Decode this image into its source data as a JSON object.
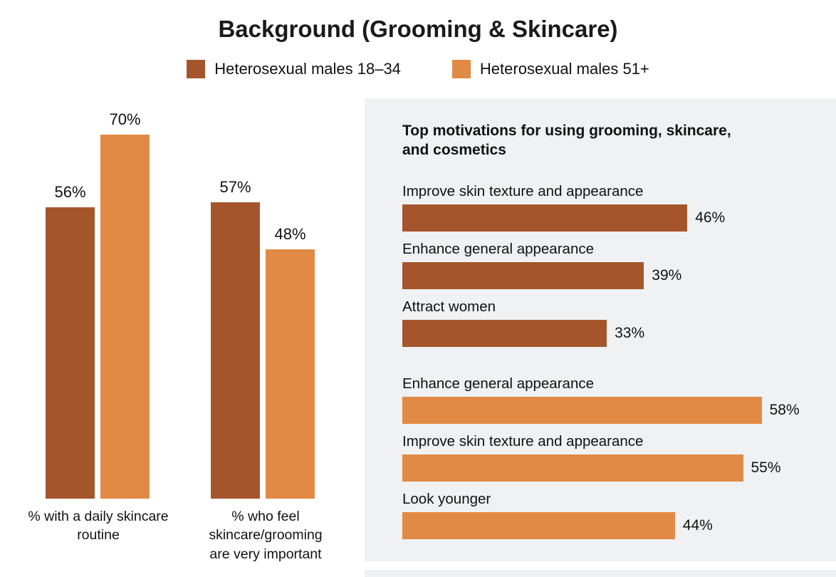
{
  "page": {
    "title": "Background (Grooming & Skincare)"
  },
  "colors": {
    "series_18_34": "#a5552b",
    "series_51_plus": "#e18a45",
    "panel_background": "#eff1f2",
    "text": "#111111"
  },
  "legend": {
    "items": [
      {
        "label": "Heterosexual males 18–34",
        "color": "#a5552b"
      },
      {
        "label": "Heterosexual males 51+",
        "color": "#e18a45"
      }
    ]
  },
  "chart_data": [
    {
      "type": "bar",
      "orientation": "vertical",
      "title": "",
      "categories": [
        "% with a daily skincare routine",
        "% who feel skincare/grooming are very important"
      ],
      "series": [
        {
          "name": "Heterosexual males 18–34",
          "color": "#a5552b",
          "values": [
            56,
            57
          ]
        },
        {
          "name": "Heterosexual males 51+",
          "color": "#e18a45",
          "values": [
            70,
            48
          ]
        }
      ],
      "data_labels": [
        [
          "56%",
          "70%"
        ],
        [
          "57%",
          "48%"
        ]
      ],
      "ylim": [
        0,
        100
      ],
      "value_axis_hidden": true,
      "grid": false,
      "legend_position": "top"
    },
    {
      "type": "bar",
      "orientation": "horizontal",
      "title": "Top motivations for using grooming, skincare, and cosmetics",
      "xlim": [
        0,
        100
      ],
      "value_axis_hidden": true,
      "grid": false,
      "groups": [
        {
          "series": "Heterosexual males 18–34",
          "color": "#a5552b",
          "bars": [
            {
              "label": "Improve skin texture and appearance",
              "value": 46,
              "value_label": "46%"
            },
            {
              "label": "Enhance general appearance",
              "value": 39,
              "value_label": "39%"
            },
            {
              "label": "Attract women",
              "value": 33,
              "value_label": "33%"
            }
          ]
        },
        {
          "series": "Heterosexual males 51+",
          "color": "#e18a45",
          "bars": [
            {
              "label": "Enhance general appearance",
              "value": 58,
              "value_label": "58%"
            },
            {
              "label": "Improve skin texture and appearance",
              "value": 55,
              "value_label": "55%"
            },
            {
              "label": "Look younger",
              "value": 44,
              "value_label": "44%"
            }
          ]
        }
      ]
    }
  ]
}
